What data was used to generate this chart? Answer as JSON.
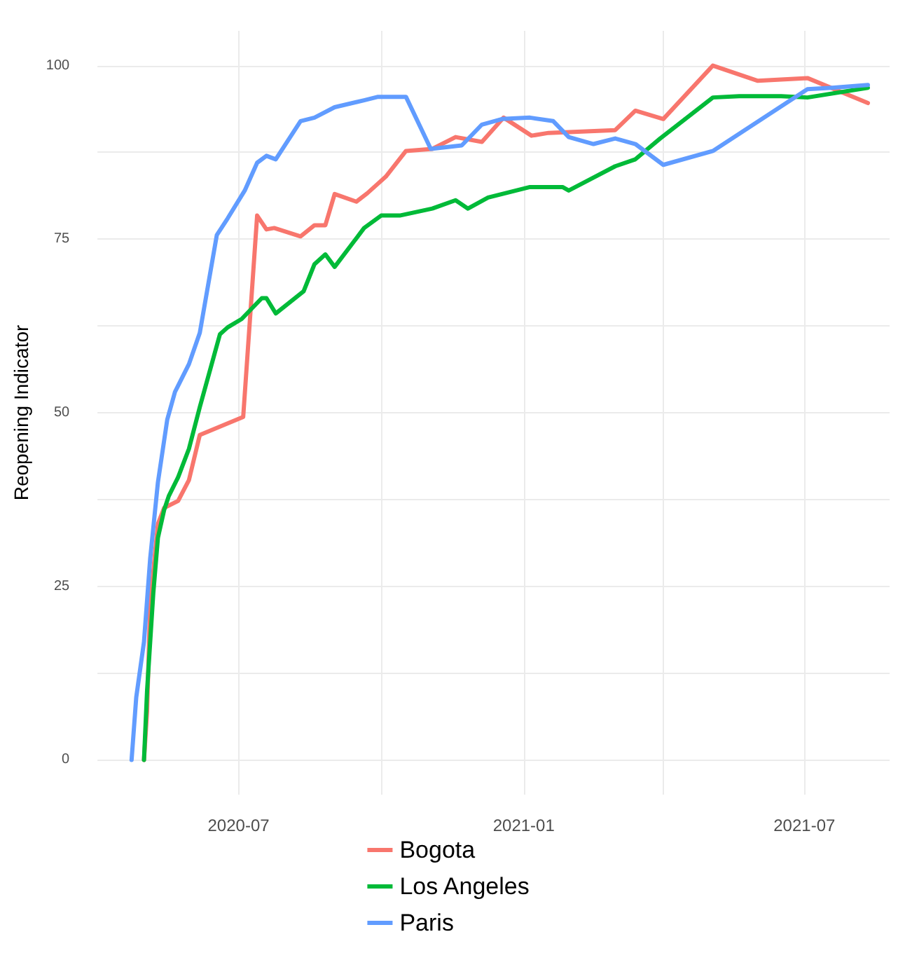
{
  "chart_data": {
    "type": "line",
    "ylabel": "Reopening Indicator",
    "xlim": [
      "2020-04-01",
      "2021-08-25"
    ],
    "ylim": [
      -5,
      105
    ],
    "xticks": [
      {
        "value": "2020-07",
        "label": "2020-07"
      },
      {
        "value": "2020-10",
        "label": null
      },
      {
        "value": "2021-01",
        "label": "2021-01"
      },
      {
        "value": "2021-04",
        "label": null
      },
      {
        "value": "2021-07",
        "label": "2021-07"
      }
    ],
    "yticks": [
      0,
      {
        "value": 12.5,
        "label": null
      },
      25,
      {
        "value": 37.5,
        "label": null
      },
      50,
      {
        "value": 62.5,
        "label": null
      },
      75,
      {
        "value": 87.5,
        "label": null
      },
      100
    ],
    "grid": true,
    "legend": "bottom",
    "marker": "none",
    "line_style": "solid",
    "series": [
      {
        "name": "Bogota",
        "color": "#f8766d",
        "x": [
          "2020-05-01",
          "2020-05-03",
          "2020-05-05",
          "2020-05-10",
          "2020-05-14",
          "2020-05-23",
          "2020-05-30",
          "2020-06-06",
          "2020-07-04",
          "2020-07-13",
          "2020-07-19",
          "2020-07-24",
          "2020-08-10",
          "2020-08-19",
          "2020-08-26",
          "2020-09-01",
          "2020-09-15",
          "2020-09-22",
          "2020-10-04",
          "2020-10-17",
          "2020-11-03",
          "2020-11-18",
          "2020-12-05",
          "2020-12-19",
          "2021-01-06",
          "2021-01-17",
          "2021-03-01",
          "2021-03-14",
          "2021-04-01",
          "2021-05-03",
          "2021-06-01",
          "2021-07-03",
          "2021-08-11"
        ],
        "values": [
          0,
          7,
          22.6,
          34,
          36.3,
          37.3,
          40.3,
          46.8,
          49.4,
          78.4,
          76.4,
          76.6,
          75.4,
          77,
          77,
          81.5,
          80.4,
          81.6,
          84,
          87.7,
          88,
          89.7,
          89,
          92.5,
          89.9,
          90.3,
          90.7,
          93.5,
          92.3,
          100,
          97.8,
          98.2,
          94.6
        ]
      },
      {
        "name": "Los Angeles",
        "color": "#00ba38",
        "x": [
          "2020-05-01",
          "2020-05-03",
          "2020-05-07",
          "2020-05-10",
          "2020-05-14",
          "2020-05-17",
          "2020-05-23",
          "2020-05-30",
          "2020-06-06",
          "2020-06-19",
          "2020-06-24",
          "2020-07-03",
          "2020-07-16",
          "2020-07-19",
          "2020-07-25",
          "2020-08-12",
          "2020-08-19",
          "2020-08-26",
          "2020-09-01",
          "2020-09-20",
          "2020-10-01",
          "2020-10-13",
          "2020-11-03",
          "2020-11-18",
          "2020-11-26",
          "2020-12-09",
          "2021-01-05",
          "2021-01-26",
          "2021-01-30",
          "2021-03-01",
          "2021-03-14",
          "2021-03-30",
          "2021-05-03",
          "2021-05-20",
          "2021-06-16",
          "2021-07-03",
          "2021-08-11"
        ],
        "values": [
          0,
          10,
          24,
          32,
          36,
          38,
          40.7,
          44.8,
          50.8,
          61.3,
          62.3,
          63.5,
          66.5,
          66.5,
          64.3,
          67.5,
          71.4,
          72.8,
          71,
          76.6,
          78.4,
          78.4,
          79.4,
          80.6,
          79.4,
          81,
          82.5,
          82.5,
          82,
          85.5,
          86.5,
          89.5,
          95.4,
          95.6,
          95.6,
          95.4,
          96.8
        ]
      },
      {
        "name": "Paris",
        "color": "#619cff",
        "x": [
          "2020-04-23",
          "2020-04-26",
          "2020-05-01",
          "2020-05-05",
          "2020-05-10",
          "2020-05-16",
          "2020-05-21",
          "2020-05-30",
          "2020-06-06",
          "2020-06-17",
          "2020-06-24",
          "2020-07-05",
          "2020-07-13",
          "2020-07-19",
          "2020-07-25",
          "2020-08-10",
          "2020-08-19",
          "2020-09-01",
          "2020-09-20",
          "2020-09-29",
          "2020-10-17",
          "2020-11-02",
          "2020-11-22",
          "2020-12-05",
          "2020-12-18",
          "2021-01-05",
          "2021-01-20",
          "2021-01-30",
          "2021-02-15",
          "2021-03-01",
          "2021-03-14",
          "2021-04-01",
          "2021-05-03",
          "2021-07-03",
          "2021-07-19",
          "2021-08-11"
        ],
        "values": [
          0,
          9,
          17,
          29,
          40,
          49,
          53,
          57,
          61.5,
          75.6,
          78,
          82,
          86,
          87,
          86.5,
          92,
          92.5,
          94,
          95,
          95.5,
          95.5,
          88,
          88.5,
          91.5,
          92.3,
          92.5,
          92,
          89.7,
          88.7,
          89.5,
          88.7,
          85.7,
          87.7,
          96.6,
          96.8,
          97.2
        ]
      }
    ]
  }
}
